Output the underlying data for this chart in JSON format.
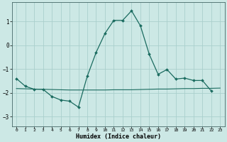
{
  "xlabel": "Humidex (Indice chaleur)",
  "ylabel": "",
  "background_color": "#cce8e5",
  "grid_color": "#aacfcc",
  "line_color": "#1a6b5f",
  "xlim": [
    -0.5,
    23.5
  ],
  "ylim": [
    -3.4,
    1.8
  ],
  "yticks": [
    -3,
    -2,
    -1,
    0,
    1
  ],
  "xticks": [
    0,
    1,
    2,
    3,
    4,
    5,
    6,
    7,
    8,
    9,
    10,
    11,
    12,
    13,
    14,
    15,
    16,
    17,
    18,
    19,
    20,
    21,
    22,
    23
  ],
  "series1_x": [
    0,
    1,
    2,
    3,
    4,
    5,
    6,
    7,
    8,
    9,
    10,
    11,
    12,
    13,
    14,
    15,
    16,
    17,
    18,
    19,
    20,
    21,
    22
  ],
  "series1_y": [
    -1.4,
    -1.72,
    -1.85,
    -1.85,
    -2.15,
    -2.3,
    -2.35,
    -2.6,
    -1.3,
    -0.3,
    0.5,
    1.05,
    1.05,
    1.45,
    0.82,
    -0.38,
    -1.22,
    -1.02,
    -1.42,
    -1.38,
    -1.48,
    -1.48,
    -1.92
  ],
  "series2_x": [
    0,
    1,
    2,
    3,
    4,
    5,
    6,
    7,
    8,
    9,
    10,
    11,
    12,
    13,
    14,
    15,
    16,
    17,
    18,
    19,
    20,
    21,
    22,
    23
  ],
  "series2_y": [
    -1.82,
    -1.83,
    -1.84,
    -1.85,
    -1.86,
    -1.87,
    -1.88,
    -1.88,
    -1.88,
    -1.88,
    -1.88,
    -1.87,
    -1.87,
    -1.87,
    -1.86,
    -1.85,
    -1.84,
    -1.84,
    -1.83,
    -1.82,
    -1.82,
    -1.81,
    -1.81,
    -1.8
  ]
}
